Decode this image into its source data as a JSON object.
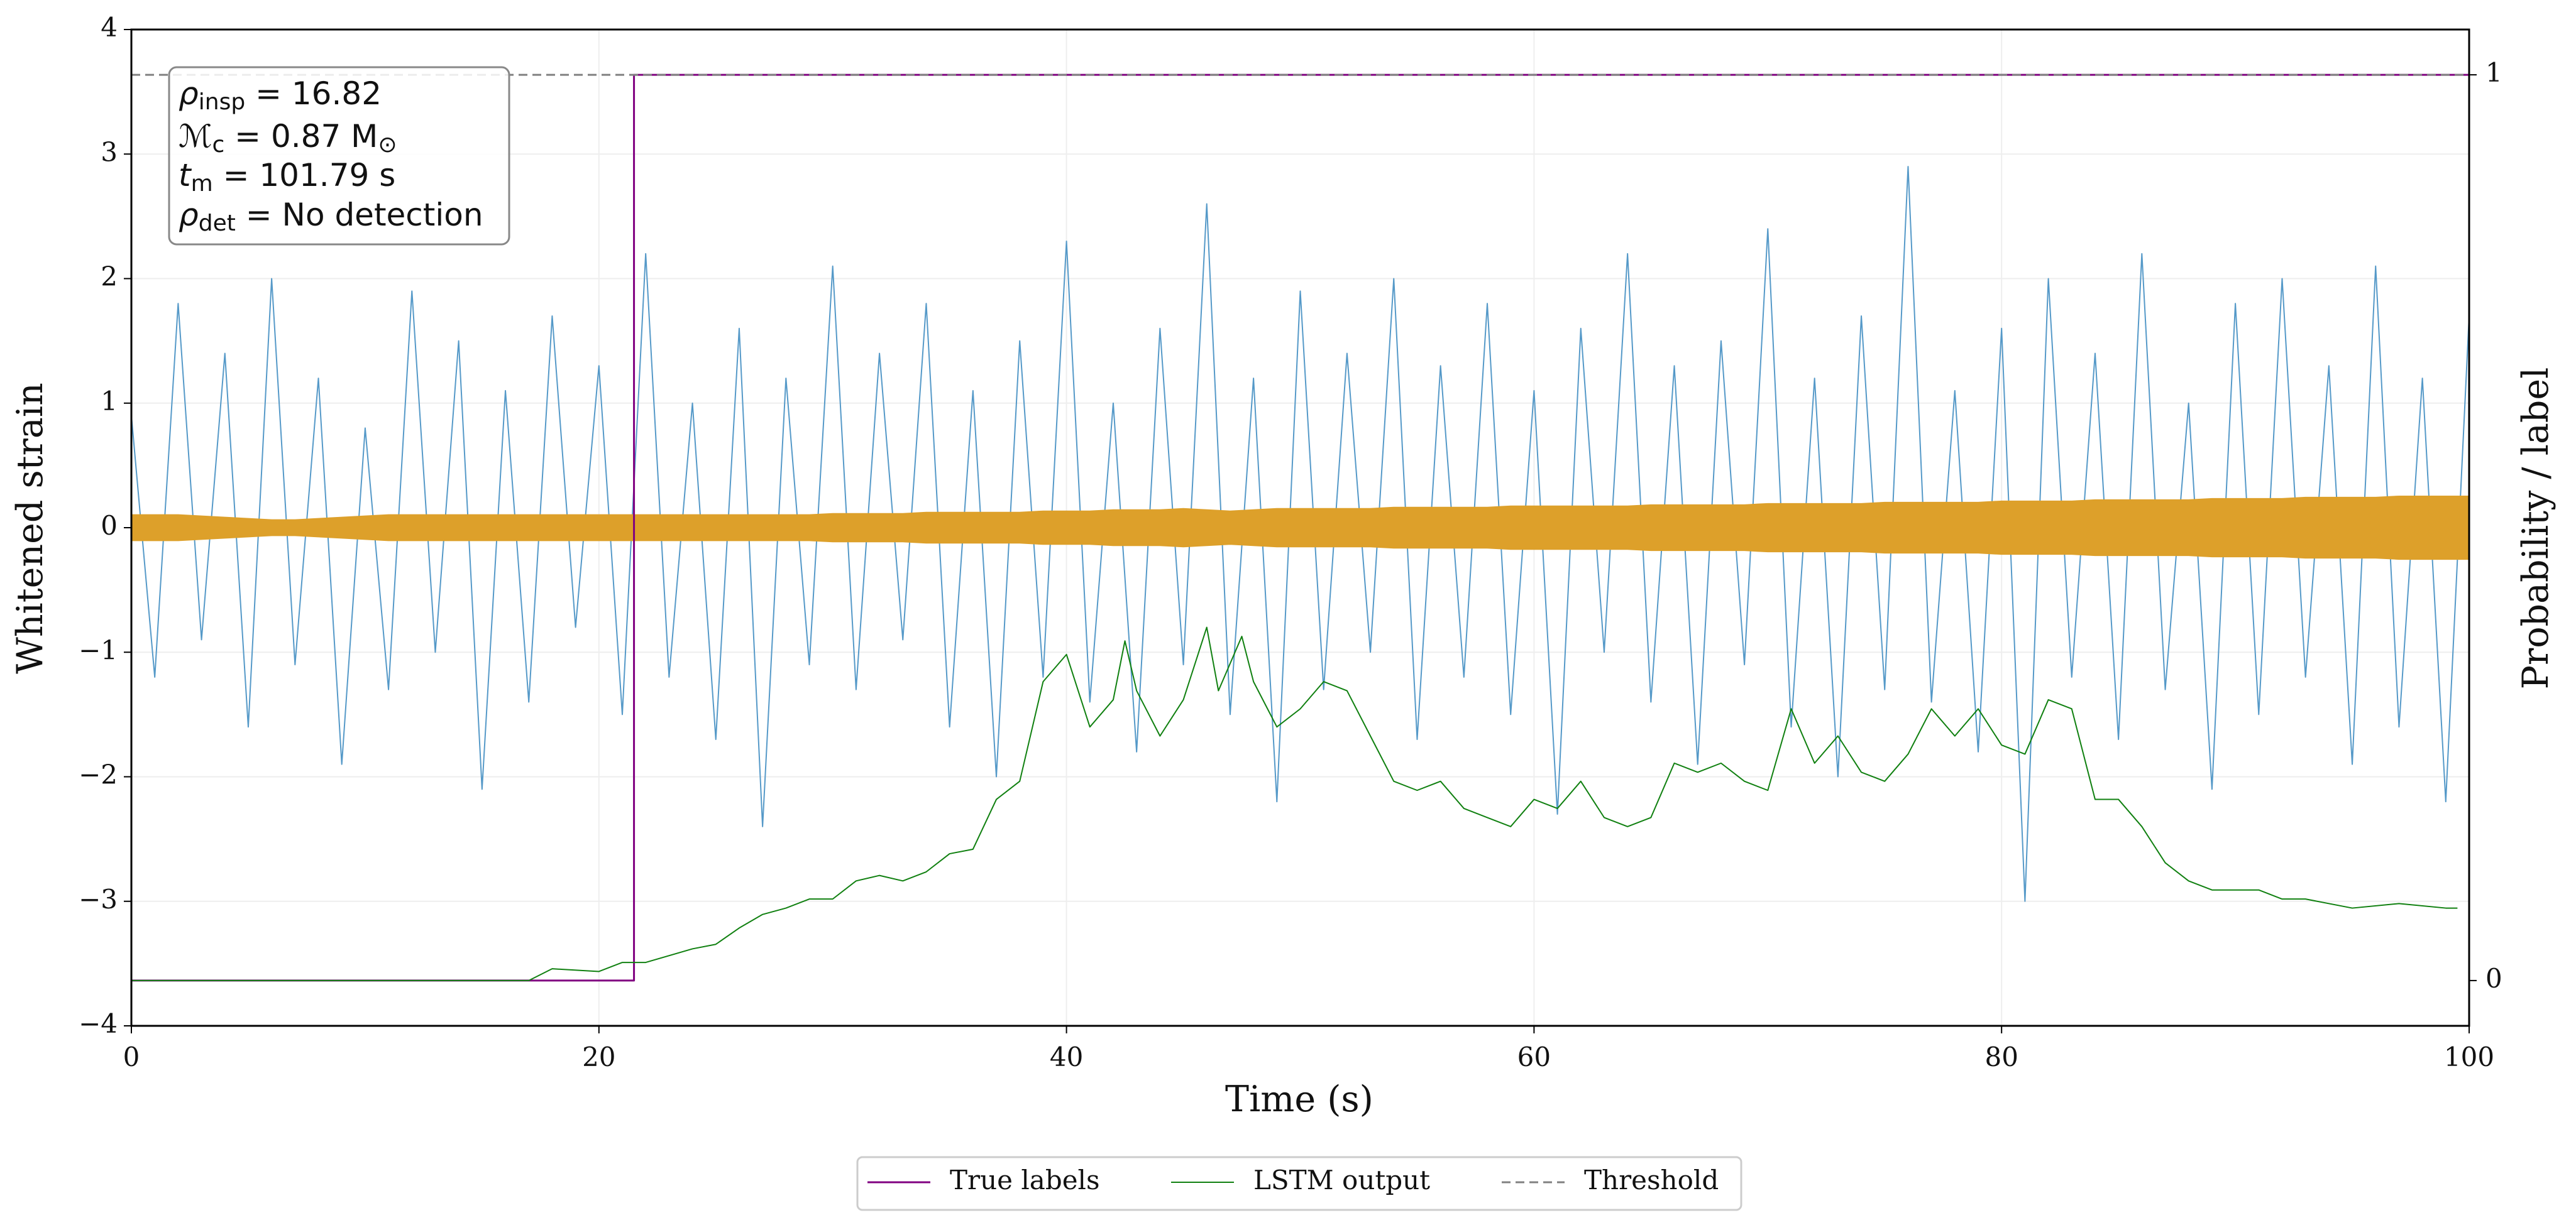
{
  "chart_data": {
    "type": "line",
    "xlabel": "Time (s)",
    "ylabel": "Whitened strain",
    "y2label": "Probability / label",
    "xlim": [
      0,
      100
    ],
    "xticks": [
      0,
      20,
      40,
      60,
      80,
      100
    ],
    "ylim": [
      -4,
      4
    ],
    "yticks": [
      {
        "value": -4,
        "label": "−4"
      },
      {
        "value": -3,
        "label": "−3"
      },
      {
        "value": -2,
        "label": "−2"
      },
      {
        "value": -1,
        "label": "−1"
      },
      0,
      1,
      2,
      3,
      4
    ],
    "y2lim": [
      -0.05,
      1.05
    ],
    "y2ticks": [
      0,
      1
    ],
    "grid": true,
    "legend": "bottom",
    "annotations": [
      [
        "ρ",
        "insp",
        " = 16.82"
      ],
      [
        "ℳ",
        "c",
        " = 0.87 M",
        "⊙"
      ],
      [
        "t",
        "m",
        " = 101.79 s"
      ],
      [
        "ρ",
        "det",
        " = No detection"
      ]
    ],
    "x": [
      0,
      1,
      2,
      3,
      4,
      5,
      6,
      7,
      8,
      9,
      10,
      11,
      12,
      13,
      14,
      15,
      16,
      17,
      18,
      19,
      20,
      21,
      22,
      23,
      24,
      25,
      26,
      27,
      28,
      29,
      30,
      31,
      32,
      33,
      34,
      35,
      36,
      37,
      38,
      39,
      40,
      41,
      42,
      43,
      44,
      45,
      46,
      47,
      48,
      49,
      50,
      51,
      52,
      53,
      54,
      55,
      56,
      57,
      58,
      59,
      60,
      61,
      62,
      63,
      64,
      65,
      66,
      67,
      68,
      69,
      70,
      71,
      72,
      73,
      74,
      75,
      76,
      77,
      78,
      79,
      80,
      81,
      82,
      83,
      84,
      85,
      86,
      87,
      88,
      89,
      90,
      91,
      92,
      93,
      94,
      95,
      96,
      97,
      98,
      99,
      100
    ],
    "series": [
      {
        "style": "line",
        "axis": "y",
        "color": "#5599c8",
        "values": [
          0.9,
          -1.2,
          1.8,
          -0.9,
          1.4,
          -1.6,
          2.0,
          -1.1,
          1.2,
          -1.9,
          0.8,
          -1.3,
          1.9,
          -1.0,
          1.5,
          -2.1,
          1.1,
          -1.4,
          1.7,
          -0.8,
          1.3,
          -1.5,
          2.2,
          -1.2,
          1.0,
          -1.7,
          1.6,
          -2.4,
          1.2,
          -1.1,
          2.1,
          -1.3,
          1.4,
          -0.9,
          1.8,
          -1.6,
          1.1,
          -2.0,
          1.5,
          -1.2,
          2.3,
          -1.4,
          1.0,
          -1.8,
          1.6,
          -1.1,
          2.6,
          -1.5,
          1.2,
          -2.2,
          1.9,
          -1.3,
          1.4,
          -1.0,
          2.0,
          -1.7,
          1.3,
          -1.2,
          1.8,
          -1.5,
          1.1,
          -2.3,
          1.6,
          -1.0,
          2.2,
          -1.4,
          1.3,
          -1.9,
          1.5,
          -1.1,
          2.4,
          -1.6,
          1.2,
          -2.0,
          1.7,
          -1.3,
          2.9,
          -1.4,
          1.1,
          -1.8,
          1.6,
          -3.0,
          2.0,
          -1.2,
          1.4,
          -1.7,
          2.2,
          -1.3,
          1.0,
          -2.1,
          1.8,
          -1.5,
          2.0,
          -1.2,
          1.3,
          -1.9,
          2.1,
          -1.6,
          1.2,
          -2.2,
          1.7
        ]
      },
      {
        "style": "band",
        "axis": "y",
        "color": "#dda02a",
        "values": [
          0.1,
          0.1,
          0.1,
          0.09,
          0.08,
          0.07,
          0.06,
          0.06,
          0.07,
          0.08,
          0.09,
          0.1,
          0.1,
          0.1,
          0.1,
          0.1,
          0.1,
          0.1,
          0.1,
          0.1,
          0.1,
          0.1,
          0.1,
          0.1,
          0.1,
          0.1,
          0.1,
          0.1,
          0.1,
          0.1,
          0.11,
          0.11,
          0.11,
          0.11,
          0.12,
          0.12,
          0.12,
          0.12,
          0.12,
          0.13,
          0.13,
          0.13,
          0.14,
          0.14,
          0.14,
          0.15,
          0.14,
          0.13,
          0.14,
          0.15,
          0.15,
          0.15,
          0.15,
          0.15,
          0.16,
          0.16,
          0.16,
          0.16,
          0.16,
          0.17,
          0.17,
          0.17,
          0.17,
          0.17,
          0.17,
          0.18,
          0.18,
          0.18,
          0.18,
          0.18,
          0.19,
          0.19,
          0.19,
          0.19,
          0.19,
          0.2,
          0.2,
          0.2,
          0.2,
          0.2,
          0.21,
          0.21,
          0.21,
          0.21,
          0.22,
          0.22,
          0.22,
          0.22,
          0.22,
          0.23,
          0.23,
          0.23,
          0.23,
          0.24,
          0.24,
          0.24,
          0.24,
          0.25,
          0.25,
          0.25,
          0.25
        ]
      },
      {
        "name": "True labels",
        "style": "line",
        "axis": "y2",
        "color": "#800080",
        "width": 3,
        "x": [
          0,
          21.5,
          21.5,
          100
        ],
        "values": [
          0,
          0,
          1,
          1
        ]
      },
      {
        "name": "LSTM output",
        "style": "line",
        "axis": "y2",
        "color": "#108010",
        "width": 2,
        "x": [
          0,
          17,
          18,
          20,
          21,
          22,
          24,
          25,
          26,
          27,
          28,
          29,
          30,
          31,
          32,
          33,
          34,
          35,
          36,
          37,
          38,
          39,
          40,
          41,
          42,
          42.5,
          43,
          44,
          45,
          46,
          46.5,
          47.5,
          48,
          49,
          50,
          51,
          52,
          53,
          54,
          55,
          56,
          57,
          58,
          59,
          60,
          61,
          62,
          63,
          64,
          65,
          66,
          67,
          68,
          69,
          70,
          71,
          72,
          73,
          74,
          75,
          76,
          77,
          78,
          79,
          80,
          81,
          82,
          83,
          84,
          85,
          86,
          87,
          88,
          89,
          90,
          91,
          92,
          93,
          95,
          97,
          99,
          99.5
        ],
        "values": [
          0,
          0,
          0.013,
          0.01,
          0.02,
          0.02,
          0.035,
          0.04,
          0.058,
          0.073,
          0.08,
          0.09,
          0.09,
          0.11,
          0.116,
          0.11,
          0.12,
          0.14,
          0.145,
          0.2,
          0.22,
          0.33,
          0.36,
          0.28,
          0.31,
          0.375,
          0.32,
          0.27,
          0.31,
          0.39,
          0.32,
          0.38,
          0.33,
          0.28,
          0.3,
          0.33,
          0.32,
          0.27,
          0.22,
          0.21,
          0.22,
          0.19,
          0.18,
          0.17,
          0.2,
          0.19,
          0.22,
          0.18,
          0.17,
          0.18,
          0.24,
          0.23,
          0.24,
          0.22,
          0.21,
          0.3,
          0.24,
          0.27,
          0.23,
          0.22,
          0.25,
          0.3,
          0.27,
          0.3,
          0.26,
          0.25,
          0.31,
          0.3,
          0.2,
          0.2,
          0.17,
          0.13,
          0.11,
          0.1,
          0.1,
          0.1,
          0.09,
          0.09,
          0.08,
          0.085,
          0.08,
          0.08
        ]
      },
      {
        "name": "Threshold",
        "style": "line",
        "axis": "y2",
        "color": "#808080",
        "width": 3,
        "dash": true,
        "x": [
          0,
          100
        ],
        "values": [
          1,
          1
        ]
      }
    ]
  }
}
